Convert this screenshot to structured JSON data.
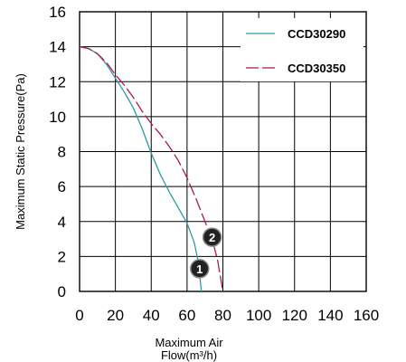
{
  "chart_data": {
    "type": "line",
    "xlabel_line1": "Maximum Air",
    "xlabel_line2": "Flow(m³/h)",
    "ylabel": "Maximum Static Pressure(Pa)",
    "xlim": [
      0,
      160
    ],
    "ylim": [
      0,
      16
    ],
    "x_ticks": [
      "0",
      "20",
      "40",
      "60",
      "80",
      "100",
      "120",
      "140",
      "160"
    ],
    "y_ticks": [
      "0",
      "2",
      "4",
      "6",
      "8",
      "10",
      "12",
      "14",
      "16"
    ],
    "grid": true,
    "legend_position": "top-right",
    "series": [
      {
        "name": "CCD30290",
        "color": "#2e9aa6",
        "dash": "solid",
        "marker": "1",
        "marker_at": [
          67,
          1.3
        ],
        "points": [
          [
            0,
            14.0
          ],
          [
            5,
            13.9
          ],
          [
            10,
            13.6
          ],
          [
            15,
            13.0
          ],
          [
            20,
            12.2
          ],
          [
            25,
            11.4
          ],
          [
            30,
            10.5
          ],
          [
            35,
            9.3
          ],
          [
            40,
            7.9
          ],
          [
            45,
            6.7
          ],
          [
            50,
            5.7
          ],
          [
            55,
            4.8
          ],
          [
            60,
            3.9
          ],
          [
            64,
            2.8
          ],
          [
            66,
            1.8
          ],
          [
            67,
            1.0
          ],
          [
            68,
            0.0
          ]
        ]
      },
      {
        "name": "CCD30350",
        "color": "#b0184a",
        "dash": "dashed",
        "marker": "2",
        "marker_at": [
          74,
          3.1
        ],
        "points": [
          [
            0,
            14.0
          ],
          [
            5,
            13.9
          ],
          [
            10,
            13.6
          ],
          [
            15,
            13.1
          ],
          [
            20,
            12.4
          ],
          [
            25,
            11.8
          ],
          [
            30,
            11.1
          ],
          [
            35,
            10.3
          ],
          [
            40,
            9.6
          ],
          [
            45,
            9.0
          ],
          [
            50,
            8.3
          ],
          [
            55,
            7.5
          ],
          [
            60,
            6.5
          ],
          [
            65,
            5.3
          ],
          [
            70,
            4.0
          ],
          [
            74,
            3.0
          ],
          [
            77,
            1.8
          ],
          [
            79,
            0.6
          ],
          [
            80,
            0.0
          ]
        ]
      }
    ]
  }
}
